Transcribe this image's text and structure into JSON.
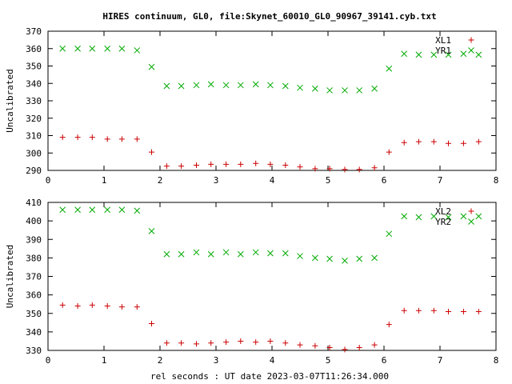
{
  "title": "HIRES continuum, GL0, file:Skynet_60010_GL0_90967_39141.cyb.txt",
  "xlabel": "rel seconds : UT date 2023-03-07T11:26:34.000",
  "colors": {
    "red": "#cc0000",
    "green": "#00aa00",
    "axis": "#000000"
  },
  "chart_data": [
    {
      "type": "scatter",
      "ylabel": "Uncalibrated",
      "xlim": [
        0,
        8
      ],
      "ylim": [
        290,
        370
      ],
      "xticks": [
        0,
        1,
        2,
        3,
        4,
        5,
        6,
        7,
        8
      ],
      "yticks": [
        290,
        300,
        310,
        320,
        330,
        340,
        350,
        360,
        370
      ],
      "grid": false,
      "legend_position": "top-right",
      "series": [
        {
          "name": "XL1",
          "marker": "plus",
          "color": "#cc0000",
          "points": [
            [
              0.26,
              309
            ],
            [
              0.53,
              309
            ],
            [
              0.79,
              309
            ],
            [
              1.06,
              308
            ],
            [
              1.32,
              308
            ],
            [
              1.59,
              308
            ],
            [
              1.85,
              300.5
            ],
            [
              2.12,
              292.5
            ],
            [
              2.38,
              292.5
            ],
            [
              2.65,
              293
            ],
            [
              2.91,
              293.5
            ],
            [
              3.18,
              293.5
            ],
            [
              3.44,
              293.5
            ],
            [
              3.71,
              294
            ],
            [
              3.97,
              293.5
            ],
            [
              4.24,
              293
            ],
            [
              4.5,
              292
            ],
            [
              4.77,
              291
            ],
            [
              5.03,
              291
            ],
            [
              5.3,
              290.5
            ],
            [
              5.56,
              290.5
            ],
            [
              5.83,
              291.5
            ],
            [
              6.09,
              300.5
            ],
            [
              6.36,
              306
            ],
            [
              6.62,
              306.5
            ],
            [
              6.89,
              306.5
            ],
            [
              7.15,
              305.5
            ],
            [
              7.42,
              305.5
            ],
            [
              7.69,
              306.5
            ]
          ]
        },
        {
          "name": "YR1",
          "marker": "cross",
          "color": "#00aa00",
          "points": [
            [
              0.26,
              360
            ],
            [
              0.53,
              360
            ],
            [
              0.79,
              360
            ],
            [
              1.06,
              360
            ],
            [
              1.32,
              360
            ],
            [
              1.59,
              359
            ],
            [
              1.85,
              349.5
            ],
            [
              2.12,
              338.5
            ],
            [
              2.38,
              338.5
            ],
            [
              2.65,
              339
            ],
            [
              2.91,
              339.5
            ],
            [
              3.18,
              339
            ],
            [
              3.44,
              339
            ],
            [
              3.71,
              339.5
            ],
            [
              3.97,
              339
            ],
            [
              4.24,
              338.5
            ],
            [
              4.5,
              337.5
            ],
            [
              4.77,
              337
            ],
            [
              5.03,
              336
            ],
            [
              5.3,
              336
            ],
            [
              5.56,
              336
            ],
            [
              5.83,
              337
            ],
            [
              6.09,
              348.5
            ],
            [
              6.36,
              357
            ],
            [
              6.62,
              356.5
            ],
            [
              6.89,
              356.5
            ],
            [
              7.15,
              356.5
            ],
            [
              7.42,
              357
            ],
            [
              7.69,
              356.5
            ]
          ]
        }
      ]
    },
    {
      "type": "scatter",
      "ylabel": "Uncalibrated",
      "xlim": [
        0,
        8
      ],
      "ylim": [
        330,
        410
      ],
      "xticks": [
        0,
        1,
        2,
        3,
        4,
        5,
        6,
        7,
        8
      ],
      "yticks": [
        330,
        340,
        350,
        360,
        370,
        380,
        390,
        400,
        410
      ],
      "grid": false,
      "legend_position": "top-right",
      "series": [
        {
          "name": "XL2",
          "marker": "plus",
          "color": "#cc0000",
          "points": [
            [
              0.26,
              354.5
            ],
            [
              0.53,
              354
            ],
            [
              0.79,
              354.5
            ],
            [
              1.06,
              354
            ],
            [
              1.32,
              353.5
            ],
            [
              1.59,
              353.5
            ],
            [
              1.85,
              344.5
            ],
            [
              2.12,
              334
            ],
            [
              2.38,
              334
            ],
            [
              2.65,
              333.5
            ],
            [
              2.91,
              334
            ],
            [
              3.18,
              334.5
            ],
            [
              3.44,
              335
            ],
            [
              3.71,
              334.5
            ],
            [
              3.97,
              335
            ],
            [
              4.24,
              334
            ],
            [
              4.5,
              333
            ],
            [
              4.77,
              332.5
            ],
            [
              5.03,
              331.5
            ],
            [
              5.3,
              330.5
            ],
            [
              5.56,
              331.5
            ],
            [
              5.83,
              333
            ],
            [
              6.09,
              344
            ],
            [
              6.36,
              351.5
            ],
            [
              6.62,
              351.5
            ],
            [
              6.89,
              351.5
            ],
            [
              7.15,
              351
            ],
            [
              7.42,
              351
            ],
            [
              7.69,
              351
            ]
          ]
        },
        {
          "name": "YR2",
          "marker": "cross",
          "color": "#00aa00",
          "points": [
            [
              0.26,
              406
            ],
            [
              0.53,
              406
            ],
            [
              0.79,
              406
            ],
            [
              1.06,
              406
            ],
            [
              1.32,
              406
            ],
            [
              1.59,
              405.5
            ],
            [
              1.85,
              394.5
            ],
            [
              2.12,
              382
            ],
            [
              2.38,
              382
            ],
            [
              2.65,
              383
            ],
            [
              2.91,
              382
            ],
            [
              3.18,
              383
            ],
            [
              3.44,
              382
            ],
            [
              3.71,
              383
            ],
            [
              3.97,
              382.5
            ],
            [
              4.24,
              382.5
            ],
            [
              4.5,
              381
            ],
            [
              4.77,
              380
            ],
            [
              5.03,
              379.5
            ],
            [
              5.3,
              378.5
            ],
            [
              5.56,
              379.5
            ],
            [
              5.83,
              380
            ],
            [
              6.09,
              393
            ],
            [
              6.36,
              402.5
            ],
            [
              6.62,
              402
            ],
            [
              6.89,
              402.5
            ],
            [
              7.15,
              402
            ],
            [
              7.42,
              402.5
            ],
            [
              7.69,
              402.5
            ]
          ]
        }
      ]
    }
  ]
}
